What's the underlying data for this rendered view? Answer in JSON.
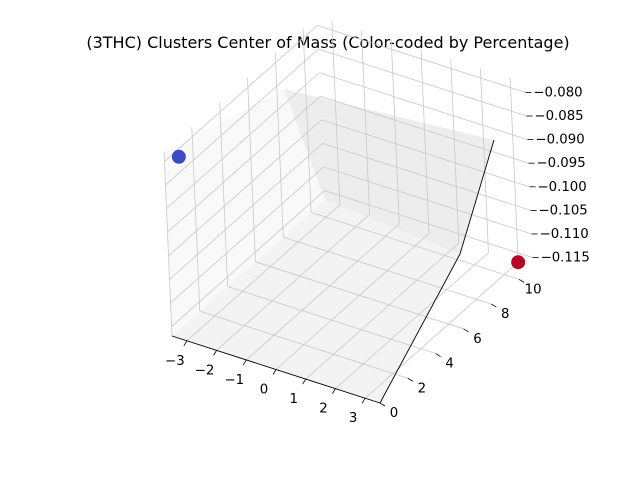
{
  "chart_data": {
    "type": "scatter",
    "projection": "3d",
    "title": "(3THC) Clusters Center of Mass (Color-coded by Percentage)",
    "xlabel": "",
    "ylabel": "",
    "zlabel": "",
    "x_ticks": [
      "−3",
      "−2",
      "−1",
      "0",
      "1",
      "2",
      "3"
    ],
    "y_ticks": [
      "0",
      "2",
      "4",
      "6",
      "8",
      "10"
    ],
    "z_ticks": [
      "−0.115",
      "−0.110",
      "−0.105",
      "−0.100",
      "−0.095",
      "−0.090",
      "−0.085",
      "−0.080"
    ],
    "xlim": [
      -3.5,
      3.5
    ],
    "ylim": [
      0,
      11
    ],
    "zlim": [
      -0.117,
      -0.078
    ],
    "grid": true,
    "colormap": "coolwarm",
    "points": [
      {
        "x": -3.0,
        "y": 0,
        "z": -0.078,
        "color": "#3b4cc0"
      },
      {
        "x": 3.0,
        "y": 11,
        "z": -0.117,
        "color": "#b40426"
      }
    ]
  }
}
